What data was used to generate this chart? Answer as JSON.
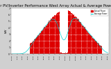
{
  "title": "Solar PV/Inverter Performance West Array Actual & Average Power Output",
  "title_fontsize": 3.8,
  "ylabel": "kW",
  "ylabel_fontsize": 3.0,
  "bg_color": "#d0d0d0",
  "plot_bg_color": "#ffffff",
  "bar_color": "#dd0000",
  "avg_line_color": "#00cccc",
  "grid_color": "#aaaaaa",
  "ylim": [
    0,
    7
  ],
  "ytick_labels": [
    "0",
    "1",
    "2",
    "3",
    "4",
    "5",
    "6",
    "7"
  ],
  "legend_items": [
    {
      "label": "Actual Power",
      "color": "#dd0000"
    },
    {
      "label": "Average Power",
      "color": "#00cccc"
    }
  ],
  "num_points": 96,
  "peak_index": 52,
  "peak_value": 6.8
}
